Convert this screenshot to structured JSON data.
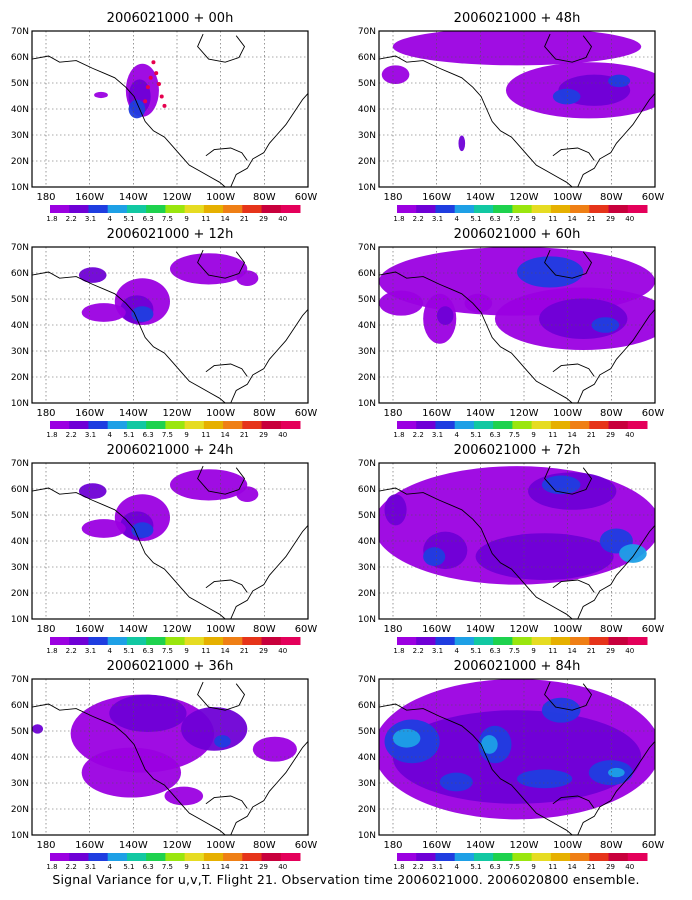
{
  "footer": "Signal Variance for u,v,T. Flight 21. Observation time 2006021000. 2006020800 ensemble.",
  "lat_labels": [
    "70N",
    "60N",
    "50N",
    "40N",
    "30N",
    "20N",
    "10N"
  ],
  "lon_labels": [
    "180",
    "160W",
    "140W",
    "120W",
    "100W",
    "80W",
    "60W"
  ],
  "colorbar": {
    "labels": [
      "1.8",
      "2.2",
      "3.1",
      "4",
      "5.1",
      "6.3",
      "7.5",
      "9",
      "11",
      "14",
      "21",
      "29",
      "40"
    ],
    "colors": [
      "#e4e4e4",
      "#9b00e1",
      "#6f00d6",
      "#1f3de0",
      "#1ea0e6",
      "#12c8a2",
      "#1ed24e",
      "#9ae60e",
      "#e6dc22",
      "#e6b000",
      "#ef7f15",
      "#e6341a",
      "#c8003c",
      "#e4005a"
    ]
  },
  "panels": [
    {
      "title": "2006021000 + 00h",
      "col": 0,
      "row": 0,
      "level": 0
    },
    {
      "title": "2006021000 + 48h",
      "col": 1,
      "row": 0,
      "level": 3
    },
    {
      "title": "2006021000 + 12h",
      "col": 0,
      "row": 1,
      "level": 1
    },
    {
      "title": "2006021000 + 60h",
      "col": 1,
      "row": 1,
      "level": 4
    },
    {
      "title": "2006021000 + 24h",
      "col": 0,
      "row": 2,
      "level": 1
    },
    {
      "title": "2006021000 + 72h",
      "col": 1,
      "row": 2,
      "level": 5
    },
    {
      "title": "2006021000 + 36h",
      "col": 0,
      "row": 3,
      "level": 2
    },
    {
      "title": "2006021000 + 84h",
      "col": 1,
      "row": 3,
      "level": 6
    }
  ]
}
